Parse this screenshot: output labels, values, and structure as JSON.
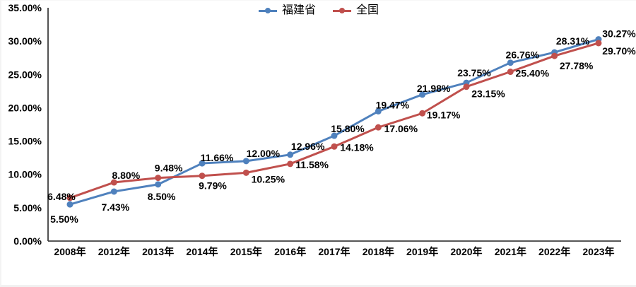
{
  "chart_data": {
    "type": "line",
    "categories": [
      "2008年",
      "2012年",
      "2013年",
      "2014年",
      "2015年",
      "2016年",
      "2017年",
      "2018年",
      "2019年",
      "2020年",
      "2021年",
      "2022年",
      "2023年"
    ],
    "series": [
      {
        "key": "fujian",
        "name": "福建省",
        "color": "#4F81BD",
        "values": [
          5.5,
          7.43,
          8.5,
          11.66,
          12.0,
          12.96,
          15.8,
          19.47,
          21.98,
          23.75,
          26.76,
          28.31,
          30.27
        ],
        "labels": [
          "5.50%",
          "7.43%",
          "8.50%",
          "11.66%",
          "12.00%",
          "12.96%",
          "15.80%",
          "19.47%",
          "21.98%",
          "23.75%",
          "26.76%",
          "28.31%",
          "30.27%"
        ]
      },
      {
        "key": "national",
        "name": "全国",
        "color": "#C0504D",
        "values": [
          6.48,
          8.8,
          9.48,
          9.79,
          10.25,
          11.58,
          14.18,
          17.06,
          19.17,
          23.15,
          25.4,
          27.78,
          29.7
        ],
        "labels": [
          "6.48%",
          "8.80%",
          "9.48%",
          "9.79%",
          "10.25%",
          "11.58%",
          "14.18%",
          "17.06%",
          "19.17%",
          "23.15%",
          "25.40%",
          "27.78%",
          "29.70%"
        ]
      }
    ],
    "y_ticks": [
      "0.00%",
      "5.00%",
      "10.00%",
      "15.00%",
      "20.00%",
      "25.00%",
      "30.00%",
      "35.00%"
    ],
    "ylim": [
      0,
      35
    ],
    "y_tick_step": 5,
    "grid": false,
    "legend_position": "bottom",
    "title": "",
    "xlabel": "",
    "ylabel": "",
    "label_color": "#000000",
    "axis_color": "#3f3f3f"
  }
}
